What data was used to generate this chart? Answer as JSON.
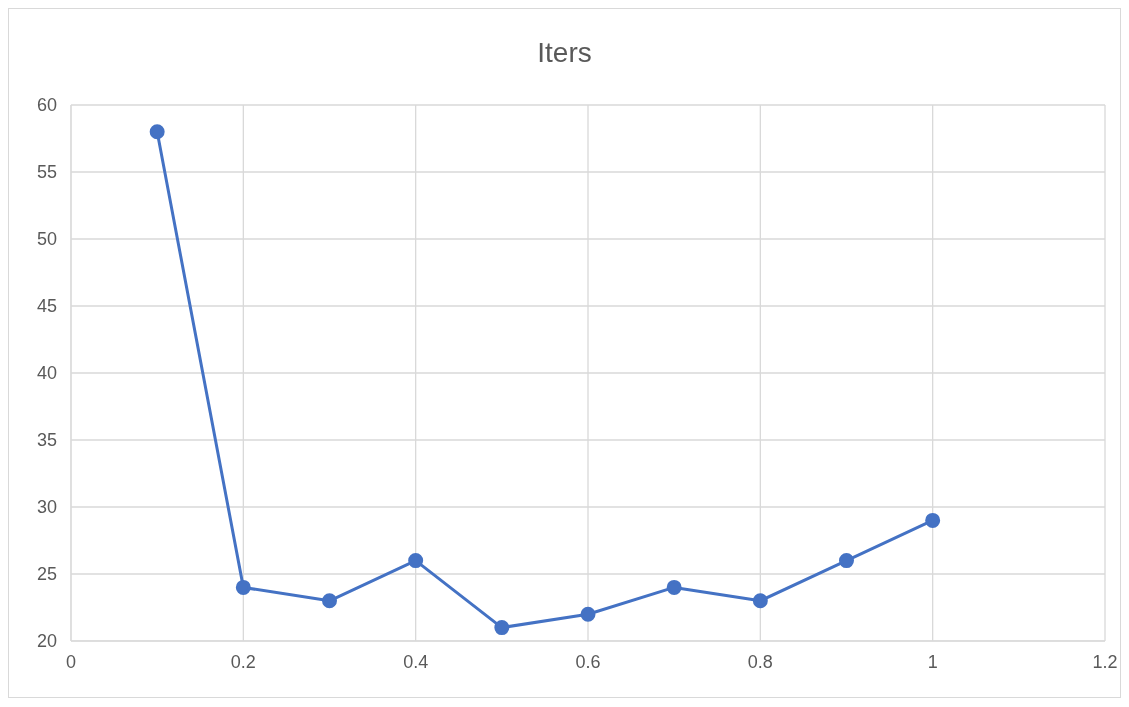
{
  "chart_data": {
    "type": "line",
    "title": "Iters",
    "x": [
      0.1,
      0.2,
      0.3,
      0.4,
      0.5,
      0.6,
      0.7,
      0.8,
      0.9,
      1
    ],
    "series": [
      {
        "color": "#4472c4",
        "values": [
          58,
          24,
          23,
          26,
          21,
          22,
          24,
          23,
          26,
          29
        ]
      }
    ],
    "xlim": [
      0,
      1.2
    ],
    "xticks": [
      0,
      0.2,
      0.4,
      0.6,
      0.8,
      1,
      1.2
    ],
    "ylim": [
      20,
      60
    ],
    "yticks": [
      20,
      25,
      30,
      35,
      40,
      45,
      50,
      55,
      60
    ],
    "grid": true,
    "legend": false,
    "marker": "circle",
    "line_style": "solid"
  }
}
